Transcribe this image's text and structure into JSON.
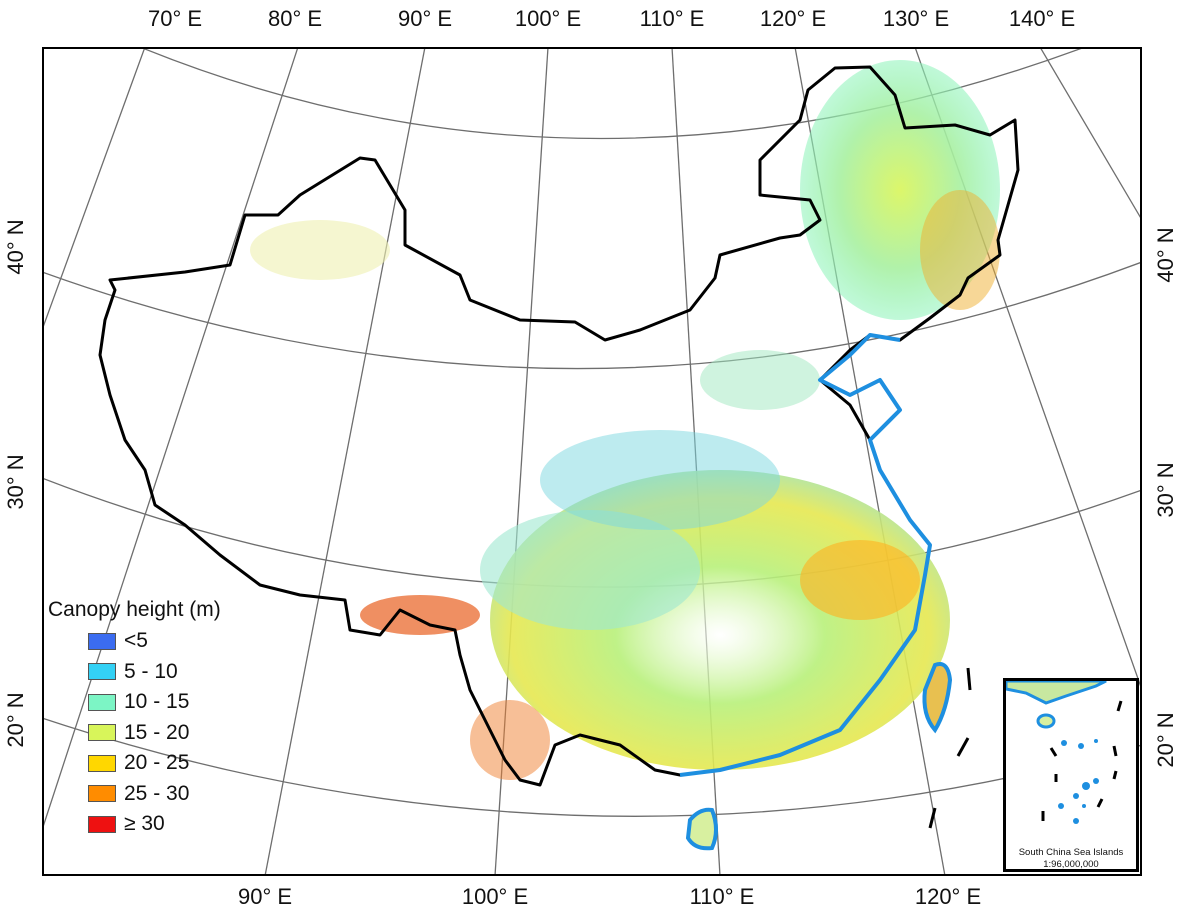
{
  "map": {
    "top_lon_labels": [
      "70° E",
      "80° E",
      "90° E",
      "100° E",
      "110° E",
      "120° E",
      "130° E",
      "140° E"
    ],
    "bottom_lon_labels": [
      "90° E",
      "100° E",
      "110° E",
      "120° E"
    ],
    "left_lat_labels": [
      "40° N",
      "30° N",
      "20° N"
    ],
    "right_lat_labels": [
      "40° N",
      "30° N",
      "20° N"
    ],
    "border_color": "#000000",
    "coastline_color": "#1e8fe0",
    "graticule_color": "#6e6e6e"
  },
  "legend": {
    "title": "Canopy height (m)",
    "items": [
      {
        "label": "<5",
        "color": "#3b6cf0"
      },
      {
        "label": "5 - 10",
        "color": "#33d1f5"
      },
      {
        "label": "10 - 15",
        "color": "#7cf5c5"
      },
      {
        "label": "15 - 20",
        "color": "#d8f55a"
      },
      {
        "label": "20 - 25",
        "color": "#ffd700"
      },
      {
        "label": "25 - 30",
        "color": "#ff8c00"
      },
      {
        "label": "≥ 30",
        "color": "#ee1111"
      }
    ]
  },
  "inset": {
    "title": "South China Sea Islands",
    "scale": "1:96,000,000"
  }
}
